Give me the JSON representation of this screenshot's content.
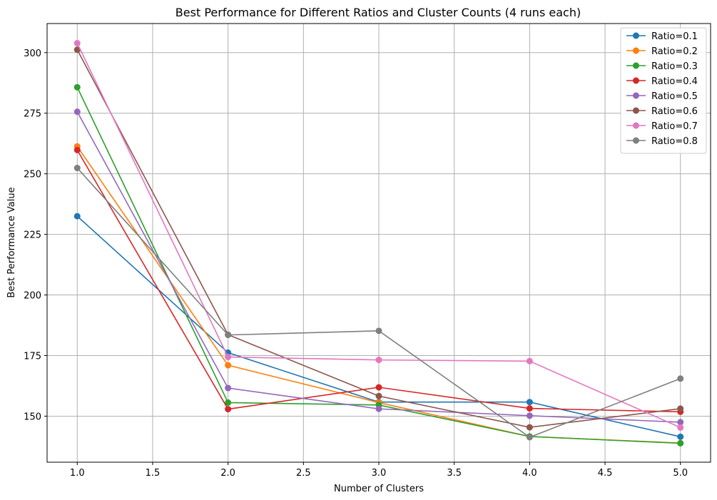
{
  "chart_data": {
    "type": "line",
    "title": "Best Performance for Different Ratios and Cluster Counts (4 runs each)",
    "xlabel": "Number of Clusters",
    "ylabel": "Best Performance Value",
    "x": [
      1.0,
      2.0,
      3.0,
      4.0,
      5.0
    ],
    "xlim": [
      0.8,
      5.2
    ],
    "ylim": [
      131,
      312
    ],
    "xticks": [
      "1.0",
      "1.5",
      "2.0",
      "2.5",
      "3.0",
      "3.5",
      "4.0",
      "4.5",
      "5.0"
    ],
    "yticks": [
      "150",
      "175",
      "200",
      "225",
      "250",
      "275",
      "300"
    ],
    "grid": true,
    "legend_position": "top-right",
    "marker": "circle",
    "series": [
      {
        "name": "Ratio=0.1",
        "color": "#1f77b4",
        "values": [
          232.5,
          176.2,
          155.8,
          155.8,
          141.5
        ]
      },
      {
        "name": "Ratio=0.2",
        "color": "#ff7f0e",
        "values": [
          261.3,
          171.0,
          155.6,
          141.6,
          138.9
        ]
      },
      {
        "name": "Ratio=0.3",
        "color": "#2ca02c",
        "values": [
          285.7,
          155.6,
          154.6,
          141.6,
          138.8
        ]
      },
      {
        "name": "Ratio=0.4",
        "color": "#d62728",
        "values": [
          259.8,
          152.9,
          161.9,
          153.2,
          151.8
        ]
      },
      {
        "name": "Ratio=0.5",
        "color": "#9467bd",
        "values": [
          275.6,
          161.6,
          153.0,
          150.2,
          147.5
        ]
      },
      {
        "name": "Ratio=0.6",
        "color": "#8c564b",
        "values": [
          301.2,
          183.6,
          158.3,
          145.4,
          153.1
        ]
      },
      {
        "name": "Ratio=0.7",
        "color": "#e377c2",
        "values": [
          303.9,
          174.4,
          173.2,
          172.7,
          145.3
        ]
      },
      {
        "name": "Ratio=0.8",
        "color": "#7f7f7f",
        "values": [
          252.4,
          183.5,
          185.2,
          141.3,
          165.5
        ]
      }
    ]
  }
}
